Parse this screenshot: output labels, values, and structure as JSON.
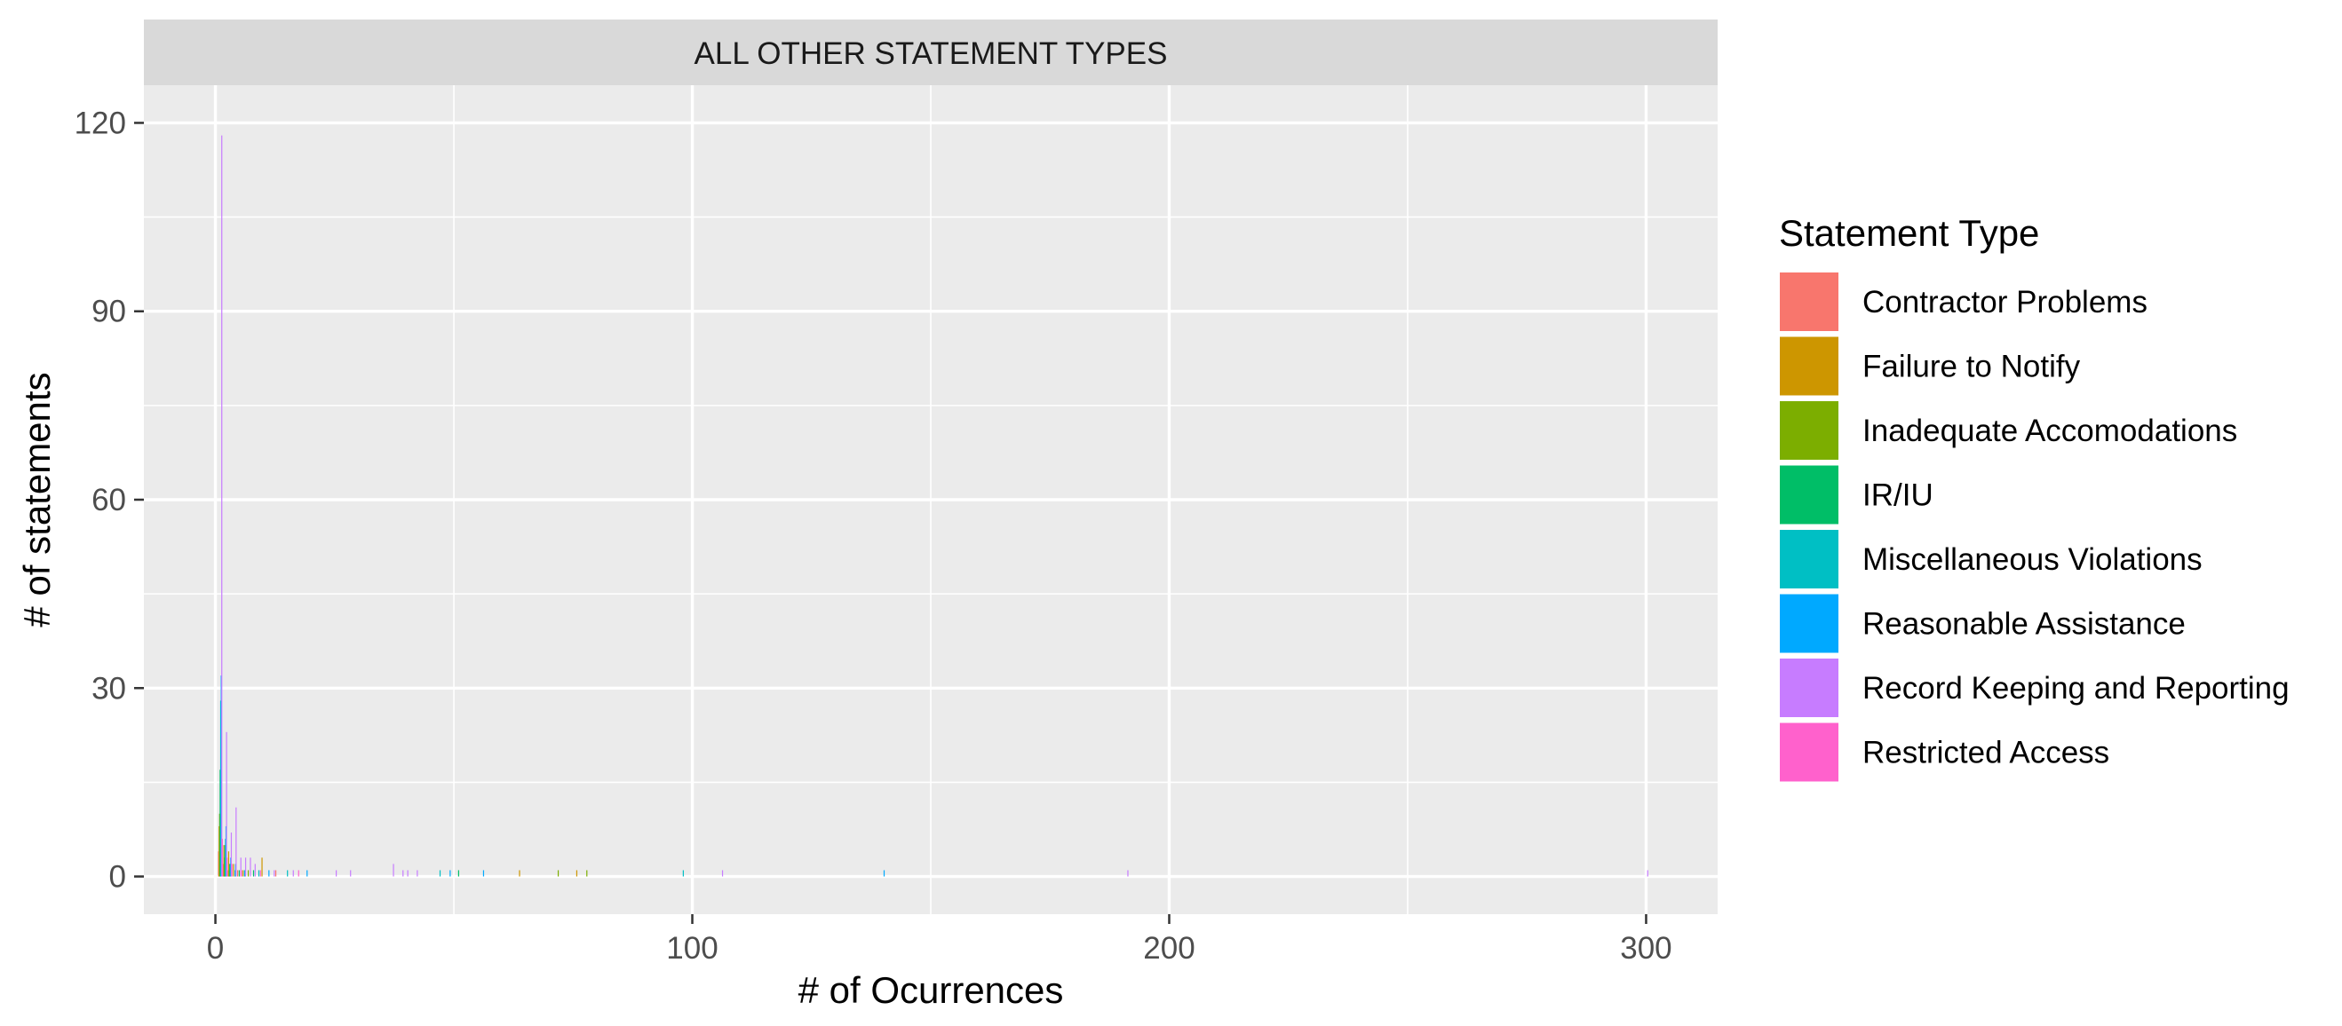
{
  "chart_data": {
    "type": "bar",
    "facet_label": "ALL OTHER STATEMENT TYPES",
    "xlabel": "# of Ocurrences",
    "ylabel": "# of statements",
    "xlim": [
      -15,
      315
    ],
    "ylim": [
      -6,
      126
    ],
    "x_ticks": [
      0,
      100,
      200,
      300
    ],
    "y_ticks": [
      0,
      30,
      60,
      90,
      120
    ],
    "grid": true,
    "legend": {
      "title": "Statement Type",
      "position": "right"
    },
    "series": [
      {
        "name": "Contractor Problems",
        "color": "#F8766D",
        "points": [
          [
            1,
            4
          ],
          [
            2,
            2
          ],
          [
            3,
            1
          ],
          [
            5,
            1
          ],
          [
            13,
            1
          ]
        ]
      },
      {
        "name": "Failure to Notify",
        "color": "#CD9600",
        "points": [
          [
            1,
            8
          ],
          [
            2,
            5
          ],
          [
            3,
            4
          ],
          [
            4,
            2
          ],
          [
            6,
            1
          ],
          [
            10,
            3
          ],
          [
            64,
            1
          ],
          [
            76,
            1
          ]
        ]
      },
      {
        "name": "Inadequate Accomodations",
        "color": "#7CAE00",
        "points": [
          [
            1,
            10
          ],
          [
            2,
            3
          ],
          [
            3,
            1
          ],
          [
            7,
            1
          ],
          [
            72,
            1
          ],
          [
            78,
            1
          ]
        ]
      },
      {
        "name": "IR/IU",
        "color": "#00BE67",
        "points": [
          [
            1,
            17
          ],
          [
            2,
            5
          ],
          [
            3,
            2
          ],
          [
            5,
            1
          ],
          [
            8,
            1
          ],
          [
            51,
            1
          ]
        ]
      },
      {
        "name": "Miscellaneous Violations",
        "color": "#00BFC4",
        "points": [
          [
            1,
            28
          ],
          [
            2,
            6
          ],
          [
            3,
            2
          ],
          [
            4,
            1
          ],
          [
            6,
            1
          ],
          [
            9,
            1
          ],
          [
            15,
            1
          ],
          [
            47,
            1
          ],
          [
            98,
            1
          ]
        ]
      },
      {
        "name": "Reasonable Assistance",
        "color": "#00A9FF",
        "points": [
          [
            1,
            32
          ],
          [
            2,
            8
          ],
          [
            3,
            3
          ],
          [
            4,
            2
          ],
          [
            6,
            1
          ],
          [
            11,
            1
          ],
          [
            19,
            1
          ],
          [
            49,
            1
          ],
          [
            56,
            1
          ],
          [
            140,
            1
          ]
        ]
      },
      {
        "name": "Record Keeping and Reporting",
        "color": "#C77CFF",
        "points": [
          [
            1,
            118
          ],
          [
            2,
            23
          ],
          [
            3,
            7
          ],
          [
            4,
            11
          ],
          [
            5,
            3
          ],
          [
            6,
            3
          ],
          [
            7,
            3
          ],
          [
            8,
            2
          ],
          [
            12,
            1
          ],
          [
            16,
            1
          ],
          [
            25,
            1
          ],
          [
            28,
            1
          ],
          [
            37,
            2
          ],
          [
            39,
            1
          ],
          [
            40,
            1
          ],
          [
            42,
            1
          ],
          [
            106,
            1
          ],
          [
            191,
            1
          ],
          [
            300,
            1
          ]
        ]
      },
      {
        "name": "Restricted Access",
        "color": "#FF61CC",
        "points": [
          [
            1,
            6
          ],
          [
            2,
            3
          ],
          [
            3,
            2
          ],
          [
            5,
            1
          ],
          [
            9,
            1
          ],
          [
            17,
            1
          ]
        ]
      }
    ]
  }
}
